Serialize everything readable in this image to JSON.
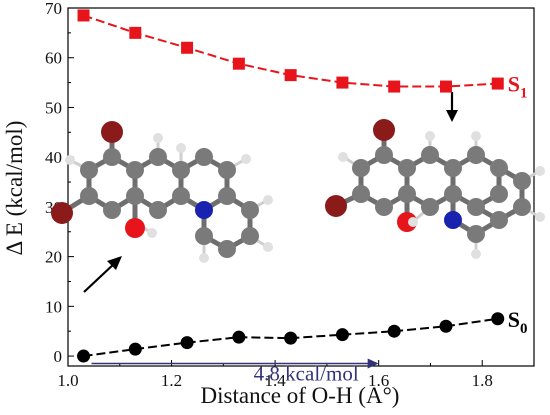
{
  "chart_data": {
    "type": "line",
    "xlabel": "Distance of O-H (A°)",
    "ylabel": "Δ E (kcal/mol)",
    "xlim": [
      1.0,
      1.9
    ],
    "ylim": [
      -2,
      70
    ],
    "x_ticks": [
      "1.0",
      "1.2",
      "1.4",
      "1.6",
      "1.8"
    ],
    "x_tick_values": [
      1.0,
      1.2,
      1.4,
      1.6,
      1.8
    ],
    "y_ticks": [
      "0",
      "10",
      "20",
      "30",
      "40",
      "50",
      "60",
      "70"
    ],
    "y_tick_values": [
      0,
      10,
      20,
      30,
      40,
      50,
      60,
      70
    ],
    "grid": false,
    "series": [
      {
        "name": "S1",
        "name_base": "S",
        "name_sub": "1",
        "color": "#e8141c",
        "marker": "square",
        "x": [
          1.03,
          1.13,
          1.23,
          1.33,
          1.43,
          1.53,
          1.63,
          1.73,
          1.83
        ],
        "y": [
          68.5,
          65.0,
          62.0,
          58.8,
          56.5,
          55.0,
          54.2,
          54.2,
          54.8
        ]
      },
      {
        "name": "S0",
        "name_base": "S",
        "name_sub": "0",
        "color": "#000000",
        "marker": "circle",
        "x": [
          1.03,
          1.13,
          1.23,
          1.33,
          1.43,
          1.53,
          1.63,
          1.73,
          1.83
        ],
        "y": [
          0.0,
          1.4,
          2.7,
          3.8,
          3.6,
          4.3,
          5.0,
          6.0,
          7.5
        ]
      }
    ],
    "annotations": [
      {
        "text": "4.8 kcal/mol",
        "color": "#33337a",
        "arrow_from_x": 1.03,
        "arrow_to_x": 1.6,
        "y": -1.5
      }
    ],
    "colors": {
      "oxygen": "#e8141c",
      "bromine": "#8b1a1a",
      "nitrogen": "#1a22b0",
      "carbon": "#7a7a7a",
      "hydrogen": "#d8d8d8"
    }
  }
}
